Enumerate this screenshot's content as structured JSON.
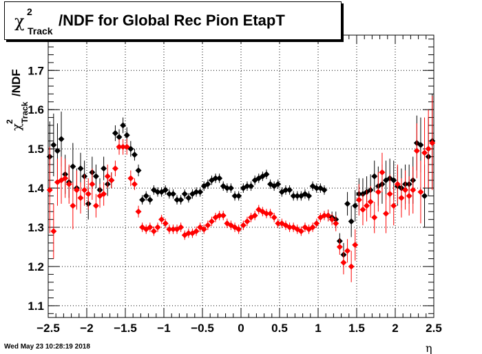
{
  "title": {
    "symbol": "χ",
    "superscript": "2",
    "subscript": "Track",
    "text": "/NDF for Global Rec Pion EtapT"
  },
  "ylabel": {
    "symbol": "χ",
    "superscript": "2",
    "subscript": "Track",
    "text": "/NDF"
  },
  "xlabel": "η",
  "timestamp": "Wed May 23 10:28:19 2018",
  "colors": {
    "series_black": "#000000",
    "series_red": "#ff0000",
    "grid": "#000000"
  },
  "chart_data": {
    "type": "scatter",
    "xlim": [
      -2.5,
      2.5
    ],
    "ylim": [
      1.07,
      1.79
    ],
    "xticks": [
      "−2.5",
      "−2",
      "−1.5",
      "−1",
      "−0.5",
      "0",
      "0.5",
      "1",
      "1.5",
      "2",
      "2.5"
    ],
    "xtick_values": [
      -2.5,
      -2,
      -1.5,
      -1,
      -0.5,
      0,
      0.5,
      1,
      1.5,
      2,
      2.5
    ],
    "yticks": [
      "1.1",
      "1.2",
      "1.3",
      "1.4",
      "1.5",
      "1.6",
      "1.7"
    ],
    "ytick_values": [
      1.1,
      1.2,
      1.3,
      1.4,
      1.5,
      1.6,
      1.7
    ],
    "grid": true,
    "series": [
      {
        "color": "black",
        "x": [
          -2.48,
          -2.43,
          -2.38,
          -2.33,
          -2.28,
          -2.23,
          -2.18,
          -2.13,
          -2.08,
          -2.03,
          -1.98,
          -1.93,
          -1.88,
          -1.83,
          -1.78,
          -1.73,
          -1.68,
          -1.63,
          -1.58,
          -1.53,
          -1.48,
          -1.43,
          -1.38,
          -1.33,
          -1.28,
          -1.23,
          -1.18,
          -1.13,
          -1.08,
          -1.03,
          -0.98,
          -0.93,
          -0.88,
          -0.83,
          -0.78,
          -0.73,
          -0.68,
          -0.63,
          -0.58,
          -0.53,
          -0.48,
          -0.43,
          -0.38,
          -0.33,
          -0.28,
          -0.23,
          -0.18,
          -0.13,
          -0.08,
          -0.03,
          0.03,
          0.08,
          0.13,
          0.18,
          0.23,
          0.28,
          0.33,
          0.38,
          0.43,
          0.48,
          0.53,
          0.58,
          0.63,
          0.68,
          0.73,
          0.78,
          0.83,
          0.88,
          0.93,
          0.98,
          1.03,
          1.08,
          1.13,
          1.18,
          1.23,
          1.28,
          1.33,
          1.38,
          1.43,
          1.48,
          1.53,
          1.58,
          1.63,
          1.68,
          1.73,
          1.78,
          1.83,
          1.88,
          1.93,
          1.98,
          2.03,
          2.08,
          2.13,
          2.18,
          2.23,
          2.28,
          2.33,
          2.38,
          2.43,
          2.48
        ],
        "y": [
          1.48,
          1.51,
          1.495,
          1.525,
          1.435,
          1.415,
          1.455,
          1.4,
          1.45,
          1.43,
          1.36,
          1.44,
          1.43,
          1.395,
          1.45,
          1.41,
          1.42,
          1.54,
          1.53,
          1.56,
          1.535,
          1.5,
          1.485,
          1.445,
          1.37,
          1.38,
          1.37,
          1.395,
          1.39,
          1.39,
          1.395,
          1.385,
          1.385,
          1.37,
          1.37,
          1.385,
          1.375,
          1.385,
          1.39,
          1.39,
          1.405,
          1.41,
          1.42,
          1.425,
          1.425,
          1.405,
          1.4,
          1.4,
          1.38,
          1.38,
          1.4,
          1.405,
          1.405,
          1.42,
          1.425,
          1.43,
          1.435,
          1.41,
          1.405,
          1.41,
          1.39,
          1.395,
          1.395,
          1.38,
          1.38,
          1.38,
          1.385,
          1.38,
          1.405,
          1.4,
          1.4,
          1.395,
          1.33,
          1.325,
          1.32,
          1.265,
          1.23,
          1.36,
          1.315,
          1.355,
          1.385,
          1.385,
          1.39,
          1.395,
          1.43,
          1.405,
          1.41,
          1.42,
          1.425,
          1.42,
          1.405,
          1.4,
          1.41,
          1.41,
          1.42,
          1.515,
          1.51,
          1.38,
          1.48,
          1.52
        ],
        "err": [
          0.09,
          0.08,
          0.07,
          0.07,
          0.05,
          0.04,
          0.06,
          0.05,
          0.04,
          0.04,
          0.04,
          0.04,
          0.03,
          0.03,
          0.03,
          0.03,
          0.02,
          0.02,
          0.02,
          0.02,
          0.02,
          0.02,
          0.015,
          0.015,
          0.012,
          0.012,
          0.012,
          0.012,
          0.012,
          0.012,
          0.012,
          0.012,
          0.012,
          0.012,
          0.012,
          0.012,
          0.012,
          0.012,
          0.012,
          0.012,
          0.012,
          0.012,
          0.012,
          0.012,
          0.012,
          0.012,
          0.012,
          0.012,
          0.012,
          0.012,
          0.012,
          0.012,
          0.012,
          0.012,
          0.012,
          0.012,
          0.012,
          0.012,
          0.012,
          0.012,
          0.012,
          0.012,
          0.012,
          0.012,
          0.012,
          0.012,
          0.012,
          0.012,
          0.012,
          0.012,
          0.012,
          0.012,
          0.015,
          0.015,
          0.02,
          0.02,
          0.03,
          0.03,
          0.04,
          0.04,
          0.04,
          0.04,
          0.04,
          0.04,
          0.04,
          0.05,
          0.05,
          0.05,
          0.05,
          0.05,
          0.05,
          0.05,
          0.05,
          0.05,
          0.06,
          0.07,
          0.07,
          0.08,
          0.1,
          0.12
        ]
      },
      {
        "color": "red",
        "x": [
          -2.48,
          -2.43,
          -2.38,
          -2.33,
          -2.28,
          -2.23,
          -2.18,
          -2.13,
          -2.08,
          -2.03,
          -1.98,
          -1.93,
          -1.88,
          -1.83,
          -1.78,
          -1.73,
          -1.68,
          -1.63,
          -1.58,
          -1.53,
          -1.48,
          -1.43,
          -1.38,
          -1.33,
          -1.28,
          -1.23,
          -1.18,
          -1.13,
          -1.08,
          -1.03,
          -0.98,
          -0.93,
          -0.88,
          -0.83,
          -0.78,
          -0.73,
          -0.68,
          -0.63,
          -0.58,
          -0.53,
          -0.48,
          -0.43,
          -0.38,
          -0.33,
          -0.28,
          -0.23,
          -0.18,
          -0.13,
          -0.08,
          -0.03,
          0.03,
          0.08,
          0.13,
          0.18,
          0.23,
          0.28,
          0.33,
          0.38,
          0.43,
          0.48,
          0.53,
          0.58,
          0.63,
          0.68,
          0.73,
          0.78,
          0.83,
          0.88,
          0.93,
          0.98,
          1.03,
          1.08,
          1.13,
          1.18,
          1.23,
          1.28,
          1.33,
          1.38,
          1.43,
          1.48,
          1.53,
          1.58,
          1.63,
          1.68,
          1.73,
          1.78,
          1.83,
          1.88,
          1.93,
          1.98,
          2.03,
          2.08,
          2.13,
          2.18,
          2.23,
          2.28,
          2.33,
          2.38,
          2.43,
          2.48
        ],
        "y": [
          1.395,
          1.29,
          1.415,
          1.42,
          1.425,
          1.41,
          1.355,
          1.395,
          1.375,
          1.395,
          1.385,
          1.41,
          1.355,
          1.38,
          1.385,
          1.43,
          1.42,
          1.45,
          1.505,
          1.505,
          1.505,
          1.425,
          1.41,
          1.34,
          1.3,
          1.295,
          1.3,
          1.29,
          1.3,
          1.32,
          1.31,
          1.295,
          1.295,
          1.295,
          1.3,
          1.28,
          1.285,
          1.285,
          1.29,
          1.3,
          1.295,
          1.305,
          1.315,
          1.325,
          1.33,
          1.33,
          1.31,
          1.305,
          1.3,
          1.295,
          1.305,
          1.315,
          1.325,
          1.33,
          1.345,
          1.34,
          1.335,
          1.335,
          1.325,
          1.31,
          1.31,
          1.305,
          1.3,
          1.3,
          1.295,
          1.29,
          1.3,
          1.295,
          1.3,
          1.31,
          1.325,
          1.33,
          1.33,
          1.32,
          1.31,
          1.25,
          1.21,
          1.24,
          1.2,
          1.255,
          1.37,
          1.345,
          1.355,
          1.365,
          1.325,
          1.39,
          1.44,
          1.335,
          1.385,
          1.355,
          1.41,
          1.375,
          1.395,
          1.38,
          1.395,
          1.495,
          1.39,
          1.49,
          1.5,
          1.515
        ],
        "err": [
          0.11,
          0.07,
          0.06,
          0.06,
          0.05,
          0.05,
          0.06,
          0.05,
          0.04,
          0.04,
          0.04,
          0.04,
          0.03,
          0.03,
          0.03,
          0.03,
          0.02,
          0.02,
          0.02,
          0.02,
          0.02,
          0.02,
          0.015,
          0.015,
          0.012,
          0.012,
          0.012,
          0.012,
          0.012,
          0.012,
          0.012,
          0.012,
          0.012,
          0.012,
          0.012,
          0.012,
          0.012,
          0.012,
          0.012,
          0.012,
          0.012,
          0.012,
          0.012,
          0.012,
          0.012,
          0.012,
          0.012,
          0.012,
          0.012,
          0.012,
          0.012,
          0.012,
          0.012,
          0.012,
          0.012,
          0.012,
          0.012,
          0.012,
          0.012,
          0.012,
          0.012,
          0.012,
          0.012,
          0.012,
          0.012,
          0.012,
          0.012,
          0.012,
          0.012,
          0.012,
          0.012,
          0.012,
          0.015,
          0.015,
          0.02,
          0.02,
          0.03,
          0.03,
          0.04,
          0.04,
          0.04,
          0.04,
          0.04,
          0.04,
          0.04,
          0.05,
          0.05,
          0.05,
          0.05,
          0.05,
          0.05,
          0.05,
          0.05,
          0.05,
          0.06,
          0.07,
          0.08,
          0.09,
          0.1,
          0.12
        ]
      }
    ]
  }
}
